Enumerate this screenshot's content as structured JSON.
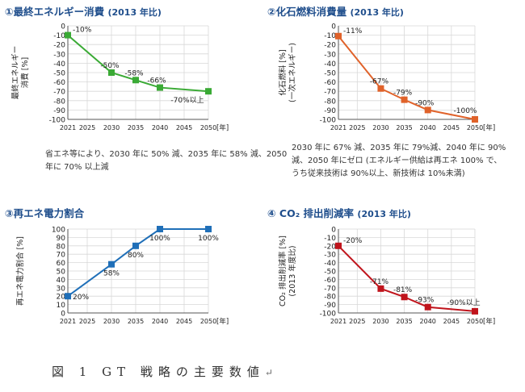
{
  "caption": "図 1 GT 戦略の主要数値",
  "caption_mark": "↵",
  "chart_data": [
    {
      "type": "line",
      "title": "①最終エネルギー消費",
      "title_note": "(2013 年比)",
      "ylabel": [
        "最終エネルギー",
        "消費 [%]"
      ],
      "xlabel": "[年]",
      "x_ticks": [
        2021,
        2025,
        2030,
        2035,
        2040,
        2045,
        2050
      ],
      "y_ticks": [
        0,
        -10,
        -20,
        -30,
        -40,
        -50,
        -60,
        -70,
        -80,
        -90,
        -100
      ],
      "ylim": [
        -100,
        0
      ],
      "color": "#3aaa35",
      "marker": "square",
      "grid": true,
      "points": [
        {
          "x": 2021,
          "y": -10,
          "label": "-10%"
        },
        {
          "x": 2030,
          "y": -50,
          "label": "-50%"
        },
        {
          "x": 2035,
          "y": -58,
          "label": "-58%"
        },
        {
          "x": 2040,
          "y": -66,
          "label": "-66%"
        },
        {
          "x": 2050,
          "y": -70,
          "label": "-70%以上"
        }
      ],
      "note": "省エネ等により、2030 年に 50% 減、2035 年に 58% 減、2050 年に 70% 以上減"
    },
    {
      "type": "line",
      "title": "②化石燃料消費量",
      "title_note": "(2013 年比)",
      "ylabel": [
        "化石燃料 [%]",
        "(一次エネルギー)"
      ],
      "xlabel": "[年]",
      "x_ticks": [
        2021,
        2025,
        2030,
        2035,
        2040,
        2045,
        2050
      ],
      "y_ticks": [
        0,
        -10,
        -20,
        -30,
        -40,
        -50,
        -60,
        -70,
        -80,
        -90,
        -100
      ],
      "ylim": [
        -100,
        0
      ],
      "color": "#e0622a",
      "marker": "square",
      "grid": true,
      "points": [
        {
          "x": 2021,
          "y": -11,
          "label": "-11%"
        },
        {
          "x": 2030,
          "y": -67,
          "label": "-67%"
        },
        {
          "x": 2035,
          "y": -79,
          "label": "-79%"
        },
        {
          "x": 2040,
          "y": -90,
          "label": "-90%"
        },
        {
          "x": 2050,
          "y": -100,
          "label": "-100%"
        }
      ],
      "note": "2030 年に 67% 減、2035 年に 79%減、2040 年に 90% 減、2050 年にゼロ (エネルギー供給は再エネ 100% で、うち従来技術は 90%以上、新技術は 10%未満)"
    },
    {
      "type": "line",
      "title": "③再エネ電力割合",
      "title_note": "",
      "ylabel": [
        "再エネ電力割合 [%]"
      ],
      "xlabel": "[年]",
      "x_ticks": [
        2021,
        2025,
        2030,
        2035,
        2040,
        2045,
        2050
      ],
      "y_ticks": [
        100,
        90,
        80,
        70,
        60,
        50,
        40,
        30,
        20,
        10,
        0
      ],
      "ylim": [
        0,
        100
      ],
      "color": "#1f6fb8",
      "marker": "square",
      "grid": true,
      "points": [
        {
          "x": 2021,
          "y": 20,
          "label": "20%"
        },
        {
          "x": 2030,
          "y": 58,
          "label": "58%"
        },
        {
          "x": 2035,
          "y": 80,
          "label": "80%"
        },
        {
          "x": 2040,
          "y": 100,
          "label": "100%"
        },
        {
          "x": 2050,
          "y": 100,
          "label": "100%"
        }
      ]
    },
    {
      "type": "line",
      "title": "④ CO₂ 排出削減率",
      "title_note": "(2013 年比)",
      "ylabel": [
        "CO₂ 排出削減率 [%]",
        "(2013 年度比)"
      ],
      "xlabel": "[年]",
      "x_ticks": [
        2021,
        2025,
        2030,
        2035,
        2040,
        2045,
        2050
      ],
      "y_ticks": [
        0,
        -10,
        -20,
        -30,
        -40,
        -50,
        -60,
        -70,
        -80,
        -90,
        -100
      ],
      "ylim": [
        -100,
        0
      ],
      "color": "#c0141c",
      "marker": "square",
      "grid": true,
      "points": [
        {
          "x": 2021,
          "y": -20,
          "label": "-20%"
        },
        {
          "x": 2030,
          "y": -71,
          "label": "-71%"
        },
        {
          "x": 2035,
          "y": -81,
          "label": "-81%"
        },
        {
          "x": 2040,
          "y": -93,
          "label": "-93%"
        },
        {
          "x": 2050,
          "y": -98,
          "label": "-90%以上"
        }
      ]
    }
  ]
}
